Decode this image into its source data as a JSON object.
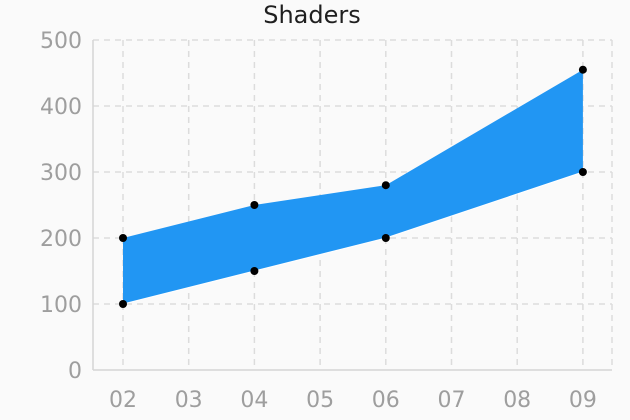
{
  "chart_data": {
    "type": "area",
    "title": "Shaders",
    "xlabel": "",
    "ylabel": "",
    "x_ticks": [
      "02",
      "03",
      "04",
      "05",
      "06",
      "07",
      "08",
      "09"
    ],
    "y_ticks": [
      "0",
      "100",
      "200",
      "300",
      "400",
      "500"
    ],
    "ylim": [
      0,
      500
    ],
    "grid": true,
    "area_color": "#2196f3",
    "point_color": "#000000",
    "band": {
      "x": [
        "02",
        "04",
        "06",
        "09"
      ],
      "upper": [
        200,
        250,
        280,
        455
      ],
      "lower": [
        100,
        150,
        200,
        300
      ]
    }
  }
}
